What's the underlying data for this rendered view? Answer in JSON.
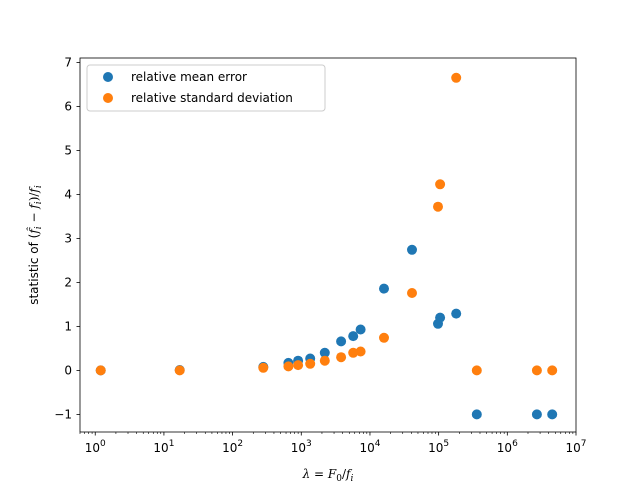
{
  "chart_data": {
    "type": "scatter",
    "xscale": "log",
    "xlim": [
      0.6,
      10000000
    ],
    "ylim": [
      -1.4,
      7.1
    ],
    "xticks": [
      {
        "value": 1,
        "base": "10",
        "exp": "0"
      },
      {
        "value": 10,
        "base": "10",
        "exp": "1"
      },
      {
        "value": 100,
        "base": "10",
        "exp": "2"
      },
      {
        "value": 1000,
        "base": "10",
        "exp": "3"
      },
      {
        "value": 10000,
        "base": "10",
        "exp": "4"
      },
      {
        "value": 100000,
        "base": "10",
        "exp": "5"
      },
      {
        "value": 1000000,
        "base": "10",
        "exp": "6"
      },
      {
        "value": 10000000,
        "base": "10",
        "exp": "7"
      }
    ],
    "yticks": [
      -1,
      0,
      1,
      2,
      3,
      4,
      5,
      6,
      7
    ],
    "ytick_labels": [
      "−1",
      "0",
      "1",
      "2",
      "3",
      "4",
      "5",
      "6",
      "7"
    ],
    "xlabel": "λ = F0/fi",
    "ylabel": "statistic of (f̂i − fi)/fi",
    "legend_position": "upper-left",
    "grid": false,
    "series": [
      {
        "name": "relative mean error",
        "color": "#1f77b4",
        "points": [
          [
            1.2,
            0.0
          ],
          [
            17,
            0.01
          ],
          [
            280,
            0.08
          ],
          [
            650,
            0.17
          ],
          [
            900,
            0.22
          ],
          [
            1350,
            0.27
          ],
          [
            2200,
            0.4
          ],
          [
            3800,
            0.66
          ],
          [
            5700,
            0.78
          ],
          [
            7300,
            0.93
          ],
          [
            16000,
            1.86
          ],
          [
            41000,
            2.74
          ],
          [
            98000,
            1.06
          ],
          [
            105000,
            1.2
          ],
          [
            180000,
            1.29
          ],
          [
            360000,
            -1.0
          ],
          [
            2700000,
            -1.0
          ],
          [
            4500000,
            -1.0
          ]
        ]
      },
      {
        "name": "relative standard deviation",
        "color": "#ff7f0e",
        "points": [
          [
            1.2,
            0.0
          ],
          [
            17,
            0.0
          ],
          [
            280,
            0.06
          ],
          [
            650,
            0.09
          ],
          [
            900,
            0.12
          ],
          [
            1350,
            0.15
          ],
          [
            2200,
            0.22
          ],
          [
            3800,
            0.3
          ],
          [
            5700,
            0.4
          ],
          [
            7300,
            0.43
          ],
          [
            16000,
            0.74
          ],
          [
            41000,
            1.76
          ],
          [
            98000,
            3.72
          ],
          [
            105000,
            4.23
          ],
          [
            180000,
            6.65
          ],
          [
            360000,
            0.0
          ],
          [
            2700000,
            0.0
          ],
          [
            4500000,
            0.0
          ]
        ]
      }
    ]
  }
}
